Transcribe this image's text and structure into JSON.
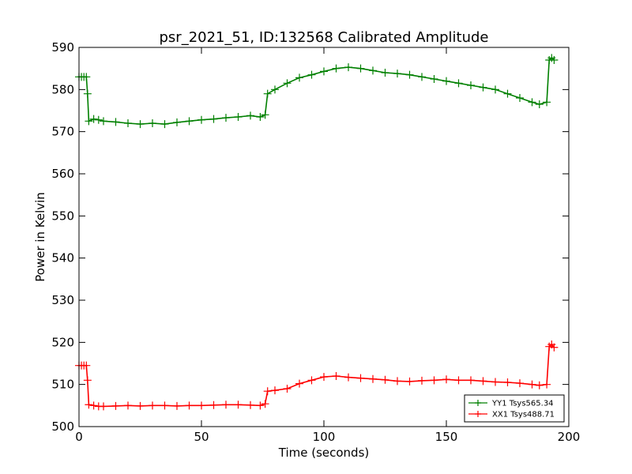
{
  "chart_data": {
    "type": "scatter",
    "title": "psr_2021_51, ID:132568 Calibrated Amplitude",
    "xlabel": "Time (seconds)",
    "ylabel": "Power in Kelvin",
    "xlim": [
      0,
      200
    ],
    "ylim": [
      500,
      590
    ],
    "xticks": [
      0,
      50,
      100,
      150,
      200
    ],
    "yticks": [
      500,
      510,
      520,
      530,
      540,
      550,
      560,
      570,
      580,
      590
    ],
    "grid": false,
    "legend_position": "lower-right",
    "marker": "+",
    "series": [
      {
        "name": "YY1 Tsys565.34",
        "color": "#008000",
        "x": [
          0,
          1,
          2,
          3,
          3.5,
          4,
          6,
          8,
          10,
          15,
          20,
          25,
          30,
          35,
          40,
          45,
          50,
          55,
          60,
          65,
          70,
          74,
          76,
          77,
          80,
          85,
          90,
          95,
          100,
          105,
          110,
          115,
          120,
          125,
          130,
          135,
          140,
          145,
          150,
          155,
          160,
          165,
          170,
          175,
          180,
          185,
          188,
          191,
          192,
          193,
          194
        ],
        "y": [
          583,
          583,
          583,
          583,
          579,
          572.5,
          573,
          572.8,
          572.5,
          572.3,
          572,
          571.8,
          572,
          571.8,
          572.2,
          572.5,
          572.8,
          573,
          573.3,
          573.5,
          573.8,
          573.5,
          574,
          579,
          580,
          581.5,
          582.8,
          583.5,
          584.3,
          585,
          585.3,
          585,
          584.5,
          584,
          583.8,
          583.5,
          583,
          582.5,
          582,
          581.5,
          581,
          580.5,
          580,
          579,
          578,
          577,
          576.5,
          577,
          587,
          587.5,
          587
        ]
      },
      {
        "name": "XX1 Tsys488.71",
        "color": "#ff0000",
        "x": [
          0,
          1,
          2,
          3,
          3.5,
          4,
          6,
          8,
          10,
          15,
          20,
          25,
          30,
          35,
          40,
          45,
          50,
          55,
          60,
          65,
          70,
          74,
          76,
          77,
          80,
          85,
          90,
          95,
          100,
          105,
          110,
          115,
          120,
          125,
          130,
          135,
          140,
          145,
          150,
          155,
          160,
          165,
          170,
          175,
          180,
          185,
          188,
          191,
          192,
          193,
          194
        ],
        "y": [
          514.5,
          514.5,
          514.5,
          514.5,
          511,
          505.2,
          505,
          504.8,
          504.8,
          504.9,
          505,
          504.9,
          505,
          505,
          504.9,
          505,
          505,
          505.1,
          505.2,
          505.2,
          505.1,
          505,
          505.4,
          508.4,
          508.6,
          509,
          510.2,
          511,
          511.8,
          512,
          511.7,
          511.5,
          511.3,
          511.1,
          510.8,
          510.7,
          510.9,
          511,
          511.2,
          511,
          511,
          510.8,
          510.6,
          510.5,
          510.3,
          510,
          509.8,
          510,
          519,
          519.5,
          518.8
        ]
      }
    ]
  }
}
